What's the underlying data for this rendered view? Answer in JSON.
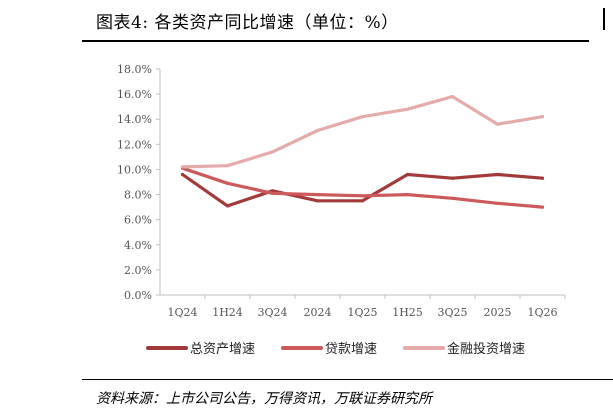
{
  "header": {
    "title": "图表4:   各类资产同比增速（单位：%）"
  },
  "footer": {
    "source": "资料来源：上市公司公告，万得资讯，万联证券研究所"
  },
  "chart_data": {
    "type": "line",
    "title": "图表4:   各类资产同比增速（单位：%）",
    "categories": [
      "1Q24",
      "1H24",
      "3Q24",
      "2024",
      "1Q25",
      "1H25",
      "3Q25",
      "2025",
      "1Q26"
    ],
    "ylim": [
      0,
      18
    ],
    "yticks": [
      "0.0%",
      "2.0%",
      "4.0%",
      "6.0%",
      "8.0%",
      "10.0%",
      "12.0%",
      "14.0%",
      "16.0%",
      "18.0%"
    ],
    "grid": false,
    "legend_position": "bottom",
    "series": [
      {
        "name": "总资产增速",
        "color": "#A33A3A",
        "values": [
          9.6,
          7.1,
          8.3,
          7.5,
          7.5,
          9.6,
          9.3,
          9.6,
          9.3
        ]
      },
      {
        "name": "贷款增速",
        "color": "#CC5A5A",
        "values": [
          10.1,
          8.9,
          8.1,
          8.0,
          7.9,
          8.0,
          7.7,
          7.3,
          7.0
        ]
      },
      {
        "name": "金融投资增速",
        "color": "#E5ABAB",
        "values": [
          10.2,
          10.3,
          11.4,
          13.1,
          14.2,
          14.8,
          15.8,
          13.6,
          14.2
        ]
      }
    ]
  }
}
